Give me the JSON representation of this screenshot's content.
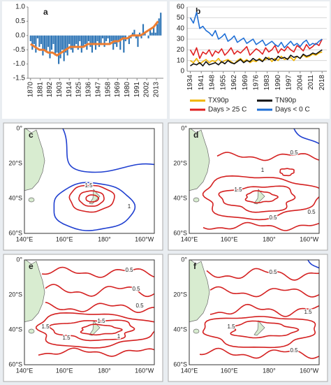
{
  "chart_data": [
    {
      "type": "bar",
      "panel": "a",
      "xlim": [
        1867,
        2021
      ],
      "xticks": [
        1870,
        1881,
        1892,
        1903,
        1914,
        1925,
        1936,
        1947,
        1958,
        1969,
        1980,
        1991,
        2002,
        2013
      ],
      "ylim": [
        -1.5,
        1.0
      ],
      "yticks": [
        -1.5,
        {
          "value": -1,
          "label": "-1.0"
        },
        -0.5,
        {
          "value": 0,
          "label": "0.0"
        },
        0.5,
        {
          "value": 1,
          "label": "1.0"
        }
      ],
      "series": [
        {
          "kind": "bar",
          "color": "#2e75b6",
          "x": [
            1870,
            1872,
            1874,
            1876,
            1878,
            1880,
            1882,
            1884,
            1886,
            1888,
            1890,
            1892,
            1894,
            1896,
            1898,
            1900,
            1902,
            1904,
            1906,
            1908,
            1910,
            1912,
            1914,
            1916,
            1918,
            1920,
            1922,
            1924,
            1926,
            1928,
            1930,
            1932,
            1934,
            1936,
            1938,
            1940,
            1942,
            1944,
            1946,
            1948,
            1950,
            1952,
            1954,
            1956,
            1958,
            1960,
            1962,
            1964,
            1966,
            1968,
            1970,
            1972,
            1974,
            1976,
            1978,
            1980,
            1982,
            1984,
            1986,
            1988,
            1990,
            1992,
            1994,
            1996,
            1998,
            2000,
            2002,
            2004,
            2006,
            2008,
            2010,
            2012,
            2014,
            2016,
            2018
          ],
          "values": [
            -0.2,
            -0.5,
            -0.3,
            -0.6,
            -0.1,
            -0.4,
            -0.3,
            -0.7,
            -0.5,
            -0.6,
            -0.4,
            -0.8,
            -0.5,
            -0.3,
            -0.7,
            -0.6,
            -1.0,
            -0.8,
            -0.5,
            -0.9,
            -0.6,
            -0.7,
            -0.3,
            -0.5,
            -0.6,
            -0.4,
            -0.3,
            -0.5,
            -0.2,
            -0.6,
            -0.4,
            -0.3,
            -0.5,
            -0.2,
            -0.4,
            -0.6,
            -0.3,
            -0.5,
            -0.2,
            -0.4,
            -0.3,
            -0.1,
            -0.4,
            -0.2,
            -0.1,
            -0.3,
            -0.2,
            -0.5,
            -0.3,
            -0.4,
            -0.2,
            -0.5,
            -0.1,
            -0.6,
            -0.2,
            0.0,
            -0.3,
            -0.1,
            0.1,
            0.2,
            -0.1,
            -0.4,
            0.1,
            -0.1,
            0.4,
            0.1,
            0.0,
            -0.1,
            0.2,
            0.1,
            0.3,
            0.1,
            0.4,
            0.6,
            0.8
          ]
        },
        {
          "kind": "line",
          "color": "#ed7d31",
          "x": [
            1870,
            1875,
            1880,
            1885,
            1890,
            1895,
            1900,
            1905,
            1910,
            1915,
            1920,
            1925,
            1930,
            1935,
            1940,
            1945,
            1950,
            1955,
            1960,
            1965,
            1970,
            1975,
            1980,
            1985,
            1990,
            1995,
            2000,
            2005,
            2010,
            2015
          ],
          "values": [
            -0.3,
            -0.4,
            -0.5,
            -0.5,
            -0.6,
            -0.6,
            -0.7,
            -0.6,
            -0.5,
            -0.4,
            -0.4,
            -0.4,
            -0.4,
            -0.3,
            -0.3,
            -0.3,
            -0.3,
            -0.3,
            -0.3,
            -0.2,
            -0.2,
            -0.1,
            -0.1,
            0.0,
            0.0,
            0.0,
            0.1,
            0.2,
            0.3,
            0.5
          ]
        }
      ]
    },
    {
      "type": "line",
      "panel": "b",
      "xlim": [
        1932,
        2021
      ],
      "xticks": [
        1934,
        1941,
        1948,
        1955,
        1962,
        1969,
        1976,
        1983,
        1990,
        1997,
        2004,
        2011,
        2018
      ],
      "ylim": [
        0,
        60
      ],
      "yticks": [
        0,
        10,
        20,
        30,
        40,
        50,
        60
      ],
      "grid": true,
      "x": [
        1934,
        1936,
        1938,
        1940,
        1942,
        1944,
        1946,
        1948,
        1950,
        1952,
        1954,
        1956,
        1958,
        1960,
        1962,
        1964,
        1966,
        1968,
        1970,
        1972,
        1974,
        1976,
        1978,
        1980,
        1982,
        1984,
        1986,
        1988,
        1990,
        1992,
        1994,
        1996,
        1998,
        2000,
        2002,
        2004,
        2006,
        2008,
        2010,
        2012,
        2014,
        2016,
        2018
      ],
      "series": [
        {
          "name": "TX90p",
          "color": "#f0b400",
          "values": [
            10,
            8,
            12,
            7,
            9,
            11,
            8,
            10,
            9,
            12,
            8,
            10,
            11,
            9,
            7,
            10,
            12,
            9,
            11,
            8,
            10,
            9,
            12,
            10,
            11,
            13,
            9,
            12,
            10,
            14,
            11,
            12,
            13,
            10,
            14,
            12,
            15,
            13,
            14,
            16,
            15,
            17,
            18
          ]
        },
        {
          "name": "TN90p",
          "color": "#111111",
          "values": [
            5,
            7,
            6,
            8,
            5,
            9,
            6,
            7,
            8,
            6,
            9,
            7,
            10,
            8,
            7,
            9,
            11,
            8,
            10,
            9,
            12,
            10,
            11,
            9,
            13,
            11,
            12,
            10,
            14,
            12,
            13,
            11,
            15,
            13,
            14,
            12,
            16,
            14,
            15,
            17,
            16,
            18,
            20
          ]
        },
        {
          "name": "Days > 25 C",
          "color": "#e02020",
          "values": [
            20,
            15,
            22,
            12,
            18,
            16,
            20,
            14,
            19,
            17,
            21,
            15,
            18,
            22,
            16,
            19,
            17,
            20,
            23,
            15,
            18,
            21,
            19,
            16,
            22,
            18,
            20,
            24,
            17,
            21,
            19,
            23,
            20,
            18,
            24,
            22,
            19,
            25,
            21,
            23,
            26,
            24,
            30
          ]
        },
        {
          "name": "Days < 0 C",
          "color": "#1f6fd6",
          "values": [
            50,
            45,
            55,
            40,
            42,
            38,
            36,
            33,
            38,
            30,
            32,
            35,
            28,
            30,
            33,
            27,
            29,
            31,
            26,
            28,
            30,
            25,
            27,
            29,
            24,
            26,
            28,
            25,
            23,
            27,
            22,
            25,
            28,
            24,
            26,
            23,
            27,
            29,
            24,
            26,
            25,
            28,
            30
          ]
        }
      ]
    }
  ],
  "map_xticks": [
    "140°E",
    "160°E",
    "180°",
    "160°W"
  ],
  "map_yticks": [
    "0°",
    "20°S",
    "40°S",
    "60°S"
  ],
  "maps": [
    {
      "panel": "c",
      "contour_labels": [
        "1.5",
        "1"
      ]
    },
    {
      "panel": "d",
      "contour_labels": [
        "0.5",
        "1.5",
        "0.5",
        "0.5",
        "1"
      ]
    },
    {
      "panel": "e",
      "contour_labels": [
        "0.5",
        "0.5",
        "0.5",
        "1.5",
        "1.5",
        "1",
        "1.5"
      ]
    },
    {
      "panel": "f",
      "contour_labels": [
        "0.5",
        "1.5",
        "1.5",
        "0.5"
      ]
    }
  ]
}
